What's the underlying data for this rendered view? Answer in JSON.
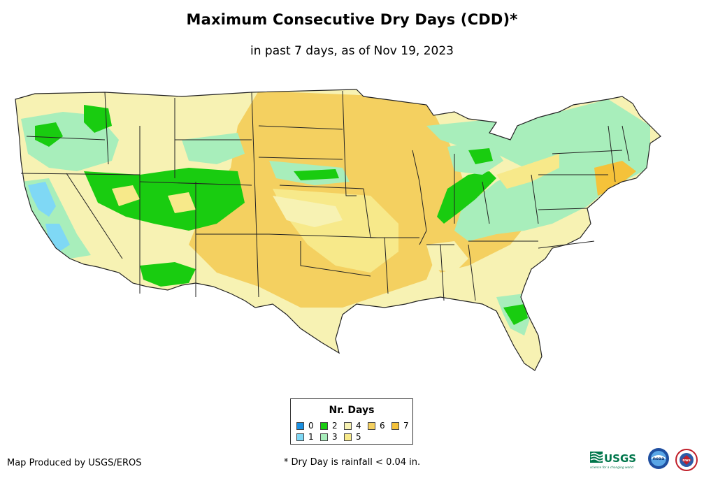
{
  "title": "Maximum Consecutive Dry Days (CDD)*",
  "subtitle": "in past 7 days, as of Nov 19, 2023",
  "legend": {
    "title": "Nr. Days",
    "items": [
      {
        "label": "0",
        "color": "#1a8fe0"
      },
      {
        "label": "1",
        "color": "#7fd8f5"
      },
      {
        "label": "2",
        "color": "#19cc10"
      },
      {
        "label": "3",
        "color": "#a8eebb"
      },
      {
        "label": "4",
        "color": "#f7f2b3"
      },
      {
        "label": "5",
        "color": "#f7e98a"
      },
      {
        "label": "6",
        "color": "#f4d060"
      },
      {
        "label": "7",
        "color": "#f5c23a"
      }
    ]
  },
  "footer": {
    "credit": "Map Produced by USGS/EROS",
    "note": "* Dry Day is rainfall < 0.04 in."
  },
  "logos": {
    "usgs": "USGS",
    "usgs_tagline": "science for a changing world",
    "noaa": "noaa",
    "nws": "nws"
  }
}
